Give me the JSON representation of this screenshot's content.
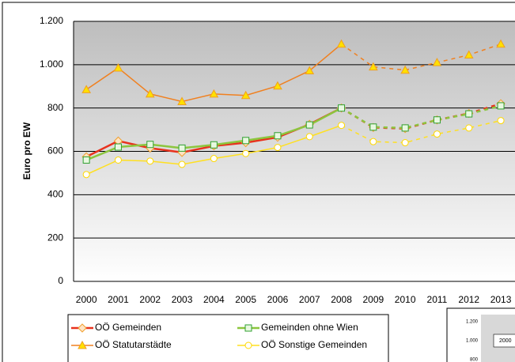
{
  "chart_data": {
    "type": "line",
    "ylabel": "Euro pro EW",
    "categories": [
      "2000",
      "2001",
      "2002",
      "2003",
      "2004",
      "2005",
      "2006",
      "2007",
      "2008",
      "2009",
      "2010",
      "2011",
      "2012",
      "2013"
    ],
    "dashed_after": "2008",
    "ylim": [
      0,
      1200
    ],
    "yticks": [
      0,
      200,
      400,
      600,
      800,
      {
        "value": 1000,
        "label": "1.000"
      },
      {
        "value": 1200,
        "label": "1.200"
      }
    ],
    "grid": true,
    "legend": "bottom-left",
    "series": [
      {
        "name": "OÖ Gemeinden",
        "color": "#e8321e",
        "marker": "diamond",
        "marker_fill": "#ffe4c4",
        "marker_stroke": "#f0a030",
        "values": [
          575,
          648,
          615,
          595,
          625,
          640,
          665,
          725,
          800,
          710,
          705,
          745,
          775,
          820
        ]
      },
      {
        "name": "Gemeinden ohne Wien",
        "color": "#8cc63e",
        "marker": "square",
        "marker_fill": "#e8f8e0",
        "marker_stroke": "#30a030",
        "values": [
          560,
          620,
          632,
          615,
          630,
          650,
          672,
          722,
          800,
          712,
          708,
          745,
          773,
          810
        ]
      },
      {
        "name": "OÖ Statutarstädte",
        "color": "#f08020",
        "marker": "triangle",
        "marker_fill": "#ffe000",
        "marker_stroke": "#f0a020",
        "values": [
          885,
          985,
          865,
          830,
          865,
          858,
          902,
          972,
          1095,
          990,
          975,
          1010,
          1045,
          1095
        ]
      },
      {
        "name": "OÖ Sonstige Gemeinden",
        "color": "#ffe020",
        "marker": "circle",
        "marker_fill": "#ffffff",
        "marker_stroke": "#ffd800",
        "values": [
          493,
          560,
          555,
          540,
          567,
          590,
          618,
          668,
          720,
          645,
          640,
          680,
          708,
          742
        ]
      }
    ]
  },
  "inset": {
    "labels": [
      "1.200",
      "1.000",
      "800"
    ],
    "legend": "2000"
  }
}
